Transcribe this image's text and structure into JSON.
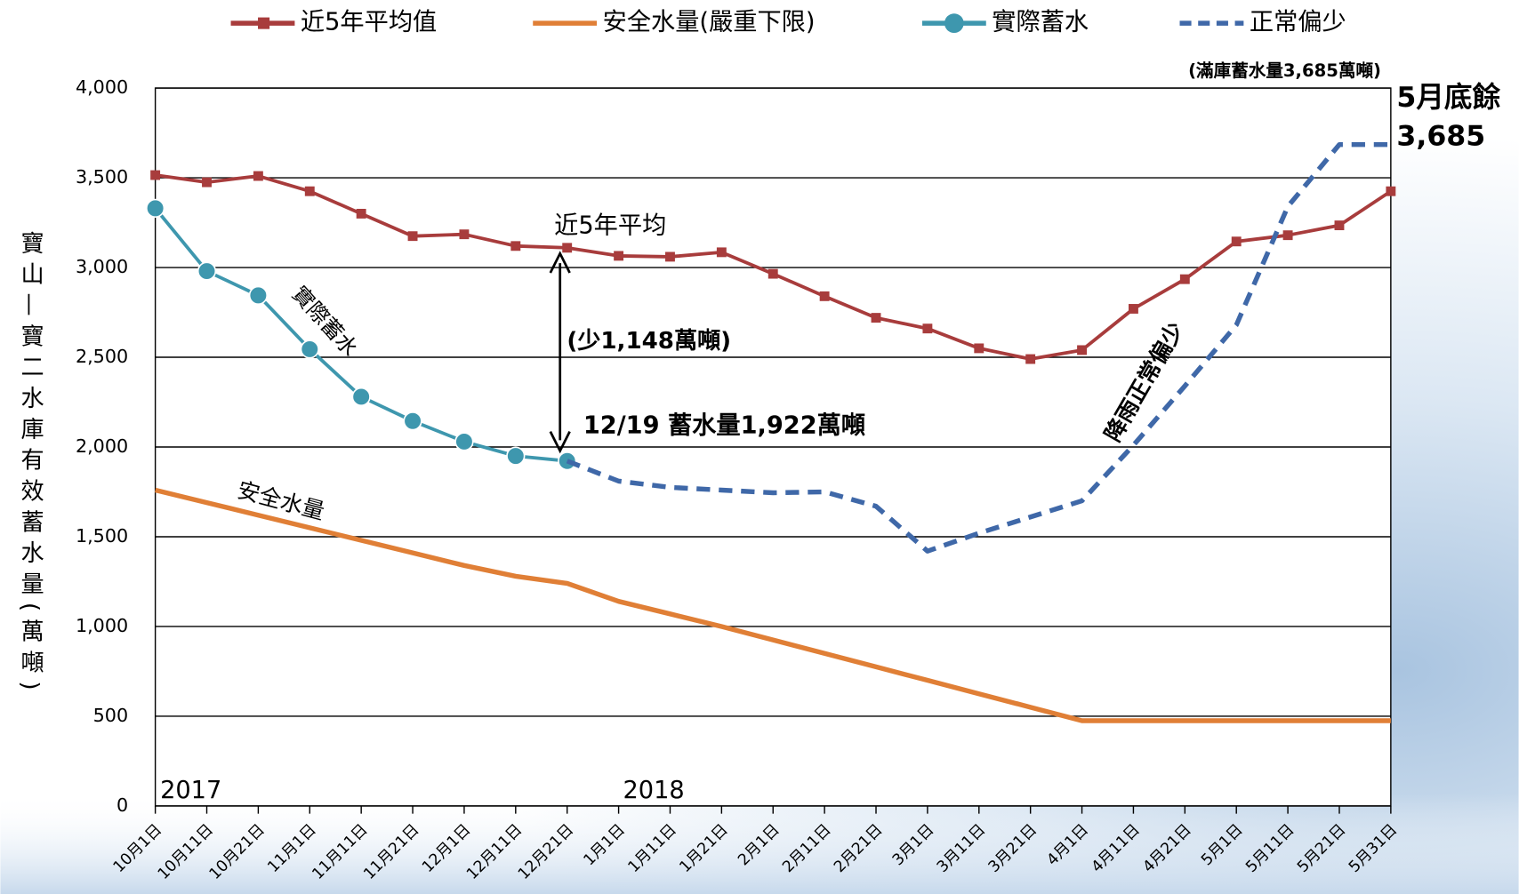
{
  "chart_data": {
    "type": "line",
    "y_label": "寶山—寶二水庫有效蓄水量(萬噸)",
    "categories": [
      "10月1日",
      "10月11日",
      "10月21日",
      "11月1日",
      "11月11日",
      "11月21日",
      "12月1日",
      "12月11日",
      "12月21日",
      "1月1日",
      "1月11日",
      "1月21日",
      "2月1日",
      "2月11日",
      "2月21日",
      "3月1日",
      "3月11日",
      "3月21日",
      "4月1日",
      "4月11日",
      "4月21日",
      "5月1日",
      "5月11日",
      "5月21日",
      "5月31日"
    ],
    "series": [
      {
        "name": "近5年平均值",
        "color": "#a83c3c",
        "marker": "square",
        "dashed": false,
        "values": [
          3515,
          3475,
          3510,
          3425,
          3300,
          3175,
          3185,
          3120,
          3110,
          3065,
          3060,
          3085,
          2965,
          2840,
          2720,
          2660,
          2550,
          2490,
          2540,
          2770,
          2935,
          3145,
          3180,
          3235,
          3425
        ]
      },
      {
        "name": "安全水量(嚴重下限)",
        "color": "#e07f36",
        "marker": "none",
        "dashed": false,
        "values": [
          1760,
          1690,
          1620,
          1550,
          1480,
          1410,
          1340,
          1280,
          1240,
          1140,
          1070,
          1000,
          925,
          850,
          775,
          700,
          625,
          550,
          475,
          475,
          475,
          475,
          475,
          475,
          475
        ]
      },
      {
        "name": "實際蓄水",
        "color": "#3e97ae",
        "marker": "circle",
        "dashed": false,
        "values": [
          3330,
          2980,
          2845,
          2545,
          2280,
          2145,
          2030,
          1950,
          1922,
          null,
          null,
          null,
          null,
          null,
          null,
          null,
          null,
          null,
          null,
          null,
          null,
          null,
          null,
          null,
          null
        ]
      },
      {
        "name": "正常偏少",
        "color": "#3f68a8",
        "marker": "none",
        "dashed": true,
        "values": [
          null,
          null,
          null,
          null,
          null,
          null,
          null,
          null,
          1922,
          1810,
          1775,
          1760,
          1745,
          1750,
          1670,
          1420,
          1520,
          1610,
          1700,
          2010,
          2340,
          2680,
          3340,
          3685,
          3685
        ]
      }
    ],
    "ylim": [
      0,
      4000
    ],
    "yticks": [
      0,
      500,
      {
        "value": 1000,
        "label": "1,000"
      },
      {
        "value": 1500,
        "label": "1,500"
      },
      {
        "value": 2000,
        "label": "2,000"
      },
      {
        "value": 2500,
        "label": "2,500"
      },
      {
        "value": 3000,
        "label": "3,000"
      },
      {
        "value": 3500,
        "label": "3,500"
      },
      {
        "value": 4000,
        "label": "4,000"
      }
    ],
    "grid": true,
    "legend": "top",
    "annotations": [
      "(滿庫蓄水量3,685萬噸)",
      "5月底餘",
      "3,685",
      "近5年平均",
      "實際蓄水",
      "(少1,148萬噸)",
      "12/19 蓄水量1,922萬噸",
      "安全水量",
      "降雨正常偏少",
      "2017",
      "2018"
    ]
  }
}
